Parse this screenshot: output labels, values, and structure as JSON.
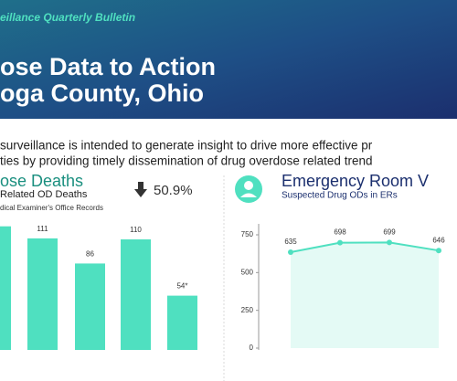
{
  "header": {
    "kicker": "eillance Quarterly Bulletin",
    "title": [
      "ose Data to Action",
      "oga County, Ohio"
    ]
  },
  "intro": [
    "surveillance is intended to generate insight to drive more effective pr",
    "ties by providing timely dissemination of drug overdose related trend"
  ],
  "deaths": {
    "title": "ose Deaths",
    "subtitle": "Related OD Deaths",
    "source": "dical Examiner's Office Records",
    "change": "50.9%",
    "chart_data": {
      "type": "bar",
      "values": [
        123,
        111,
        86,
        110,
        54
      ],
      "value_labels": [
        null,
        "111",
        "86",
        "110",
        "54*"
      ],
      "color": "#4fe0c0"
    }
  },
  "er": {
    "title": "Emergency Room V",
    "subtitle": "Suspected Drug ODs in ERs",
    "chart_data": {
      "type": "line",
      "values": [
        635,
        698,
        699,
        646
      ],
      "ylim": [
        0,
        750
      ],
      "yticks": [
        0,
        250,
        500,
        750
      ],
      "color": "#4fe0c0"
    }
  }
}
